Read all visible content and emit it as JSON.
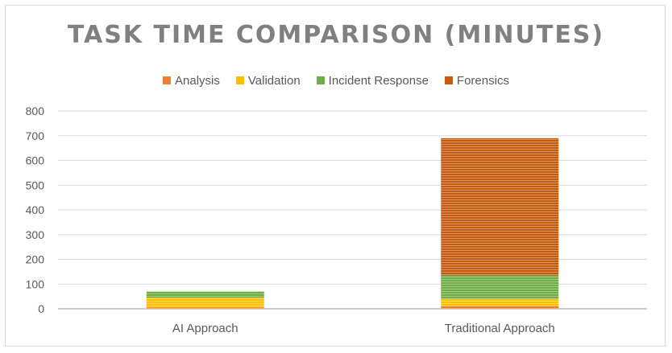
{
  "chart_data": {
    "type": "bar",
    "stacked": true,
    "title": "TASK TIME COMPARISON (MINUTES)",
    "xlabel": "",
    "ylabel": "",
    "categories": [
      "AI Approach",
      "Traditional Approach"
    ],
    "series": [
      {
        "name": "Analysis",
        "color": "#ED7D31",
        "values": [
          5,
          10
        ]
      },
      {
        "name": "Validation",
        "color": "#FFC000",
        "values": [
          40,
          30
        ]
      },
      {
        "name": "Incident Response",
        "color": "#70AD47",
        "values": [
          25,
          95
        ]
      },
      {
        "name": "Forensics",
        "color": "#C55A11",
        "values": [
          0,
          555
        ]
      }
    ],
    "ylim": [
      0,
      800
    ],
    "yticks": [
      0,
      100,
      200,
      300,
      400,
      500,
      600,
      700,
      800
    ],
    "grid": true,
    "legend_position": "top"
  }
}
